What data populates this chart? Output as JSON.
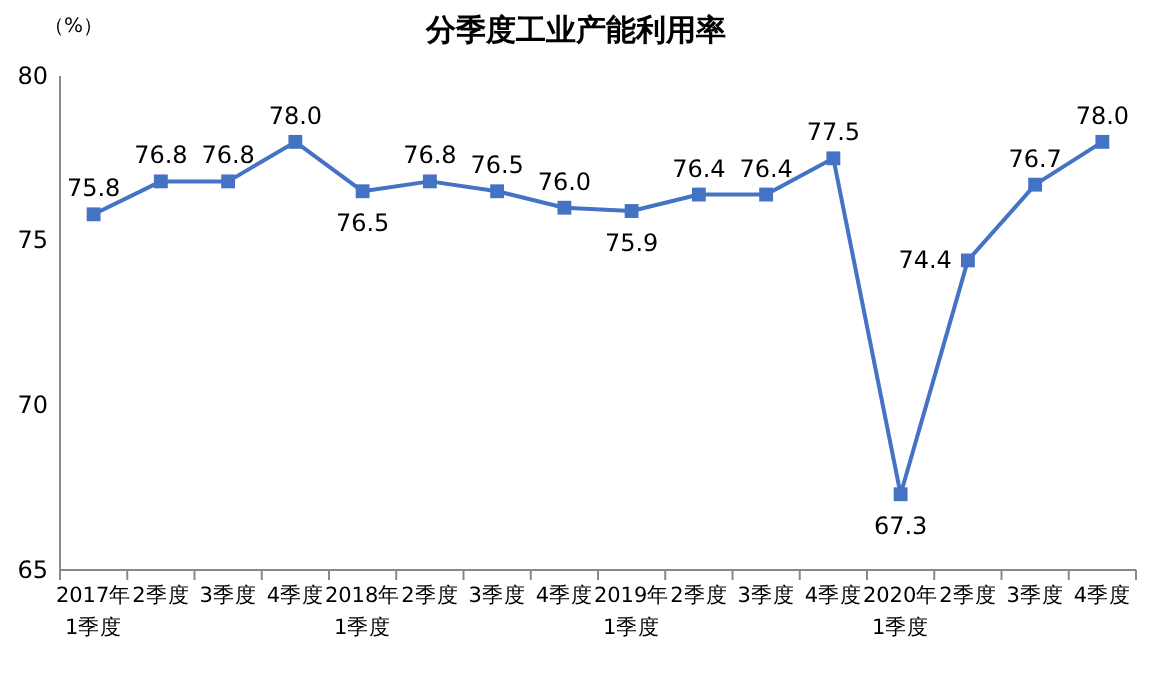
{
  "chart_data": {
    "type": "line",
    "title": "分季度工业产能利用率",
    "ylabel": "（%）",
    "categories": [
      "2017年\n1季度",
      "2季度",
      "3季度",
      "4季度",
      "2018年\n1季度",
      "2季度",
      "3季度",
      "4季度",
      "2019年\n1季度",
      "2季度",
      "3季度",
      "4季度",
      "2020年\n1季度",
      "2季度",
      "3季度",
      "4季度"
    ],
    "series": [
      {
        "color": "#4472c4",
        "values": [
          75.8,
          76.8,
          76.8,
          78.0,
          76.5,
          76.8,
          76.5,
          76.0,
          75.9,
          76.4,
          76.4,
          77.5,
          67.3,
          74.4,
          76.7,
          78.0
        ],
        "value_labels": [
          "75.8",
          "76.8",
          "76.8",
          "78.0",
          "76.5",
          "76.8",
          "76.5",
          "76.0",
          "75.9",
          "76.4",
          "76.4",
          "77.5",
          "67.3",
          "74.4",
          "76.7",
          "78.0"
        ]
      }
    ],
    "ylim": [
      65,
      80
    ],
    "yticks": [
      65,
      70,
      75,
      80
    ],
    "grid": false,
    "marker": "square",
    "line_style": "solid"
  }
}
